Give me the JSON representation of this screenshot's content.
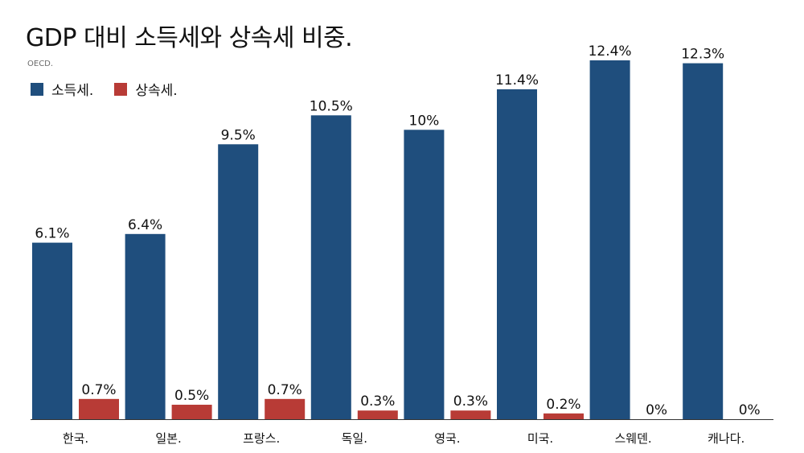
{
  "title": "GDP 대비 소득세와 상속세 비중.",
  "source": "OECD.",
  "chart_data": {
    "type": "bar",
    "categories": [
      "한국.",
      "일본.",
      "프랑스.",
      "독일.",
      "영국.",
      "미국.",
      "스웨덴.",
      "캐나다."
    ],
    "series": [
      {
        "name": "소득세.",
        "color": "#1f4e7d",
        "values": [
          6.1,
          6.4,
          9.5,
          10.5,
          10,
          11.4,
          12.4,
          12.3
        ],
        "labels": [
          "6.1%",
          "6.4%",
          "9.5%",
          "10.5%",
          "10%",
          "11.4%",
          "12.4%",
          "12.3%"
        ]
      },
      {
        "name": "상속세.",
        "color": "#b83b36",
        "values": [
          0.7,
          0.5,
          0.7,
          0.3,
          0.3,
          0.2,
          0,
          0
        ],
        "labels": [
          "0.7%",
          "0.5%",
          "0.7%",
          "0.3%",
          "0.3%",
          "0.2%",
          "0%",
          "0%"
        ]
      }
    ],
    "ylim": [
      0,
      12.4
    ],
    "grid": false,
    "legend_position": "top-left"
  }
}
